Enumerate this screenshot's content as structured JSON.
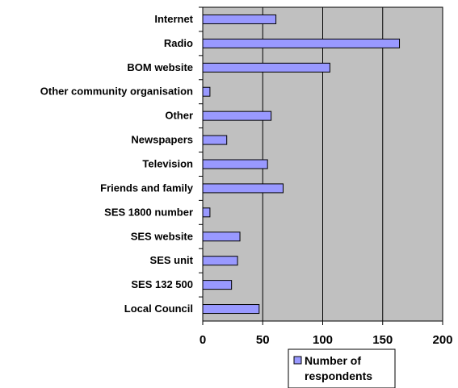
{
  "chart_data": {
    "type": "bar",
    "orientation": "horizontal",
    "categories": [
      "Internet",
      "Radio",
      "BOM website",
      "Other community organisation",
      "Other",
      "Newspapers",
      "Television",
      "Friends and family",
      "SES 1800 number",
      "SES website",
      "SES unit",
      "SES 132 500",
      "Local Council"
    ],
    "series": [
      {
        "name": "Number of respondents",
        "values": [
          61,
          164,
          106,
          6,
          57,
          20,
          54,
          67,
          6,
          31,
          29,
          24,
          47
        ]
      }
    ],
    "xlim": [
      0,
      200
    ],
    "xticks": [
      "0",
      "50",
      "100",
      "150",
      "200"
    ],
    "grid": "vertical lines",
    "legend": "bottom",
    "legend_lines": [
      "Number of",
      "respondents"
    ],
    "colors": {
      "plot_background": "#c0c0c0",
      "bar_fill": "#9999ff",
      "bar_stroke": "#000000",
      "grid": "#000000"
    }
  }
}
